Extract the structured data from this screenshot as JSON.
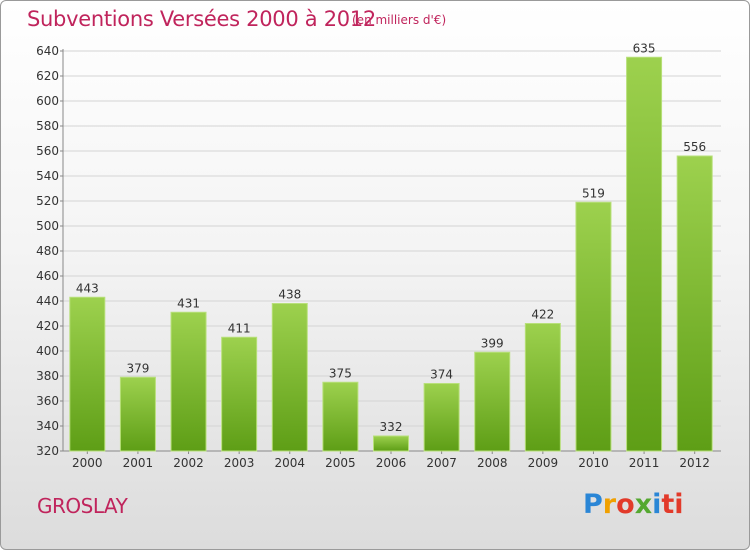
{
  "title": "Subventions Versées 2000 à 2012",
  "unit_note": "(en milliers d'€)",
  "city": "GROSLAY",
  "logo": {
    "letters": [
      "P",
      "r",
      "o",
      "x",
      "i",
      "ti"
    ],
    "colors": [
      "#2a86d6",
      "#f0a000",
      "#e23a2a",
      "#55a830",
      "#2a86d6",
      "#e23a2a"
    ]
  },
  "chart_data": {
    "type": "bar",
    "categories": [
      "2000",
      "2001",
      "2002",
      "2003",
      "2004",
      "2005",
      "2006",
      "2007",
      "2008",
      "2009",
      "2010",
      "2011",
      "2012"
    ],
    "values": [
      443,
      379,
      431,
      411,
      438,
      375,
      332,
      374,
      399,
      422,
      519,
      635,
      556
    ],
    "title": "Subventions Versées 2000 à 2012",
    "ylim": [
      320,
      640
    ],
    "yticks": [
      320,
      340,
      360,
      380,
      400,
      420,
      440,
      460,
      480,
      500,
      520,
      540,
      560,
      580,
      600,
      620,
      640
    ],
    "grid": true,
    "bar_color": "#8cc63f",
    "bar_color_dark": "#5e9e16"
  }
}
